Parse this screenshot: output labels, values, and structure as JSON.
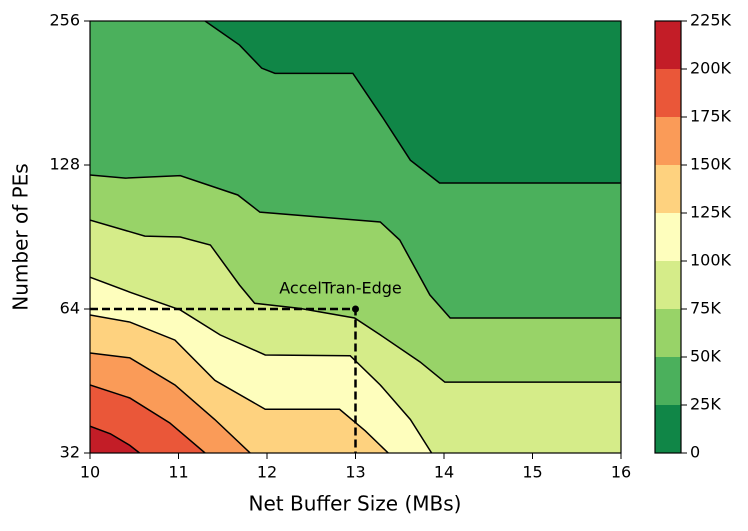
{
  "chart_data": {
    "type": "contour",
    "x_label": "Net Buffer Size (MBs)",
    "y_label": "Number of PEs",
    "xlim": [
      10,
      16
    ],
    "xticks": [
      10,
      11,
      12,
      13,
      14,
      15,
      16
    ],
    "ylim": [
      32,
      256
    ],
    "yticks": [
      32,
      64,
      128,
      256
    ],
    "yscale": "log2",
    "colorbar_ticks": [
      0,
      {
        "value": 25000,
        "label": "25K"
      },
      {
        "value": 50000,
        "label": "50K"
      },
      {
        "value": 75000,
        "label": "75K"
      },
      {
        "value": 100000,
        "label": "100K"
      },
      {
        "value": 125000,
        "label": "125K"
      },
      {
        "value": 150000,
        "label": "150K"
      },
      {
        "value": 175000,
        "label": "175K"
      },
      {
        "value": 200000,
        "label": "200K"
      },
      {
        "value": 225000,
        "label": "225K"
      }
    ],
    "colors": [
      "#108647",
      "#4bb05c",
      "#98d368",
      "#d5ec89",
      "#fefebd",
      "#fed27f",
      "#fa9b58",
      "#ea5739",
      "#c31d27"
    ],
    "contours": [
      {
        "level": 25000,
        "x": [
          11.3,
          11.69,
          11.94,
          12.09,
          12.97,
          13.31,
          13.62,
          13.95,
          16
        ],
        "y": [
          256,
          228,
          204,
          199,
          199,
          160.6,
          131,
          117.4,
          117.4
        ]
      },
      {
        "level": 50000,
        "x": [
          10,
          10.4,
          11.02,
          11.67,
          11.92,
          13.28,
          13.5,
          13.84,
          14.07,
          16
        ],
        "y": [
          122,
          120.2,
          121.6,
          110.8,
          102,
          97.3,
          89.2,
          68.5,
          61.3,
          61.3
        ]
      },
      {
        "level": 75000,
        "x": [
          10,
          10.62,
          11.02,
          11.36,
          11.69,
          11.86,
          12.37,
          12.99,
          13.28,
          13.73,
          14.01,
          16
        ],
        "y": [
          98.2,
          90.9,
          90.5,
          87.1,
          71.8,
          65.8,
          64.2,
          61.3,
          56.5,
          49.6,
          45.0,
          45.0
        ]
      },
      {
        "level": 100000,
        "x": [
          10,
          10.45,
          11.02,
          11.47,
          11.98,
          12.94,
          13.28,
          13.62,
          13.86
        ],
        "y": [
          74.6,
          69.4,
          63.7,
          56.5,
          51.3,
          51.1,
          44.4,
          37.6,
          32
        ]
      },
      {
        "level": 125000,
        "x": [
          10,
          10.45,
          10.96,
          11.41,
          11.98,
          12.82,
          13.11,
          13.37
        ],
        "y": [
          62.2,
          60.1,
          55.1,
          45.4,
          39.5,
          39.5,
          35.6,
          32
        ]
      },
      {
        "level": 150000,
        "x": [
          10,
          10.45,
          10.96,
          11.41,
          11.81
        ],
        "y": [
          51.8,
          50.6,
          44.4,
          37.6,
          32
        ]
      },
      {
        "level": 175000,
        "x": [
          10,
          10.45,
          10.9,
          11.3
        ],
        "y": [
          44.4,
          41.7,
          37.0,
          32
        ]
      },
      {
        "level": 200000,
        "x": [
          10,
          10.23,
          10.45,
          10.56
        ],
        "y": [
          36.4,
          35.1,
          33.2,
          32
        ]
      }
    ],
    "annotation": {
      "text": "AccelTran-Edge",
      "x": 13,
      "y": 64
    }
  }
}
